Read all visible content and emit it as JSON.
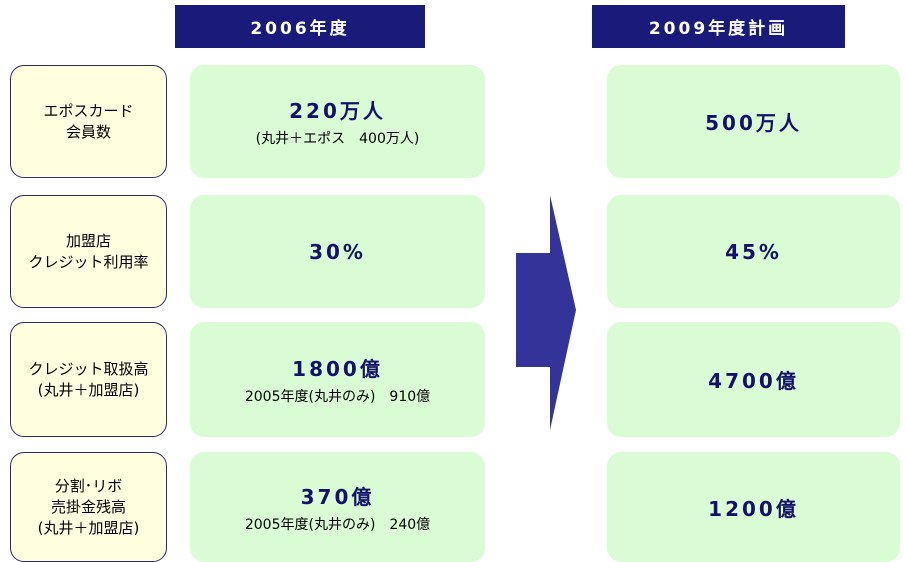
{
  "headers": [
    "2006年度",
    "2009年度計画"
  ],
  "rows": [
    {
      "label": [
        "エポスカード",
        "会員数"
      ],
      "current": "220万人",
      "current_note": "(丸井＋エポス　400万人)",
      "plan": "500万人"
    },
    {
      "label": [
        "加盟店",
        "クレジット利用率"
      ],
      "current": "30%",
      "plan": "45%"
    },
    {
      "label": [
        "クレジット取扱高",
        "(丸井＋加盟店)"
      ],
      "current": "1800億",
      "current_note": "2005年度(丸井のみ)　910億",
      "plan": "4700億"
    },
    {
      "label": [
        "分割･リボ",
        "売掛金残高",
        "(丸井＋加盟店)"
      ],
      "current": "370億",
      "current_note": "2005年度(丸井のみ)　240億",
      "plan": "1200億"
    }
  ]
}
